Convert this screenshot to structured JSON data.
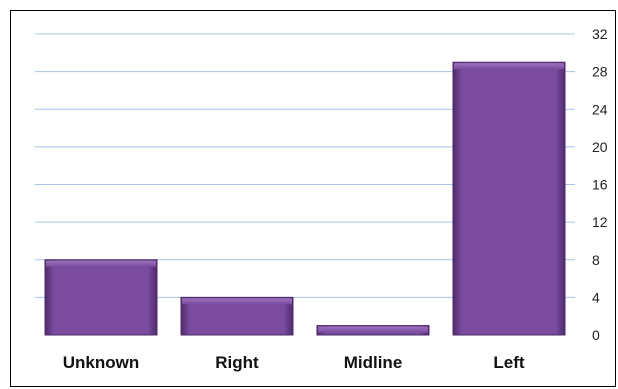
{
  "chart_data": {
    "type": "bar",
    "categories": [
      "Unknown",
      "Right",
      "Midline",
      "Left"
    ],
    "values": [
      8,
      4,
      1,
      29
    ],
    "title": "",
    "xlabel": "",
    "ylabel": "",
    "ylim": [
      0,
      32
    ],
    "yticks": [
      0,
      4,
      8,
      12,
      16,
      20,
      24,
      28,
      32
    ],
    "y_axis_side": "right",
    "grid": true,
    "legend": "none",
    "colors": {
      "bar": "#7a4b9f",
      "bar_dark": "#4e2a6b",
      "bar_light": "#9b72bd",
      "grid": "#a9c4e6"
    }
  }
}
